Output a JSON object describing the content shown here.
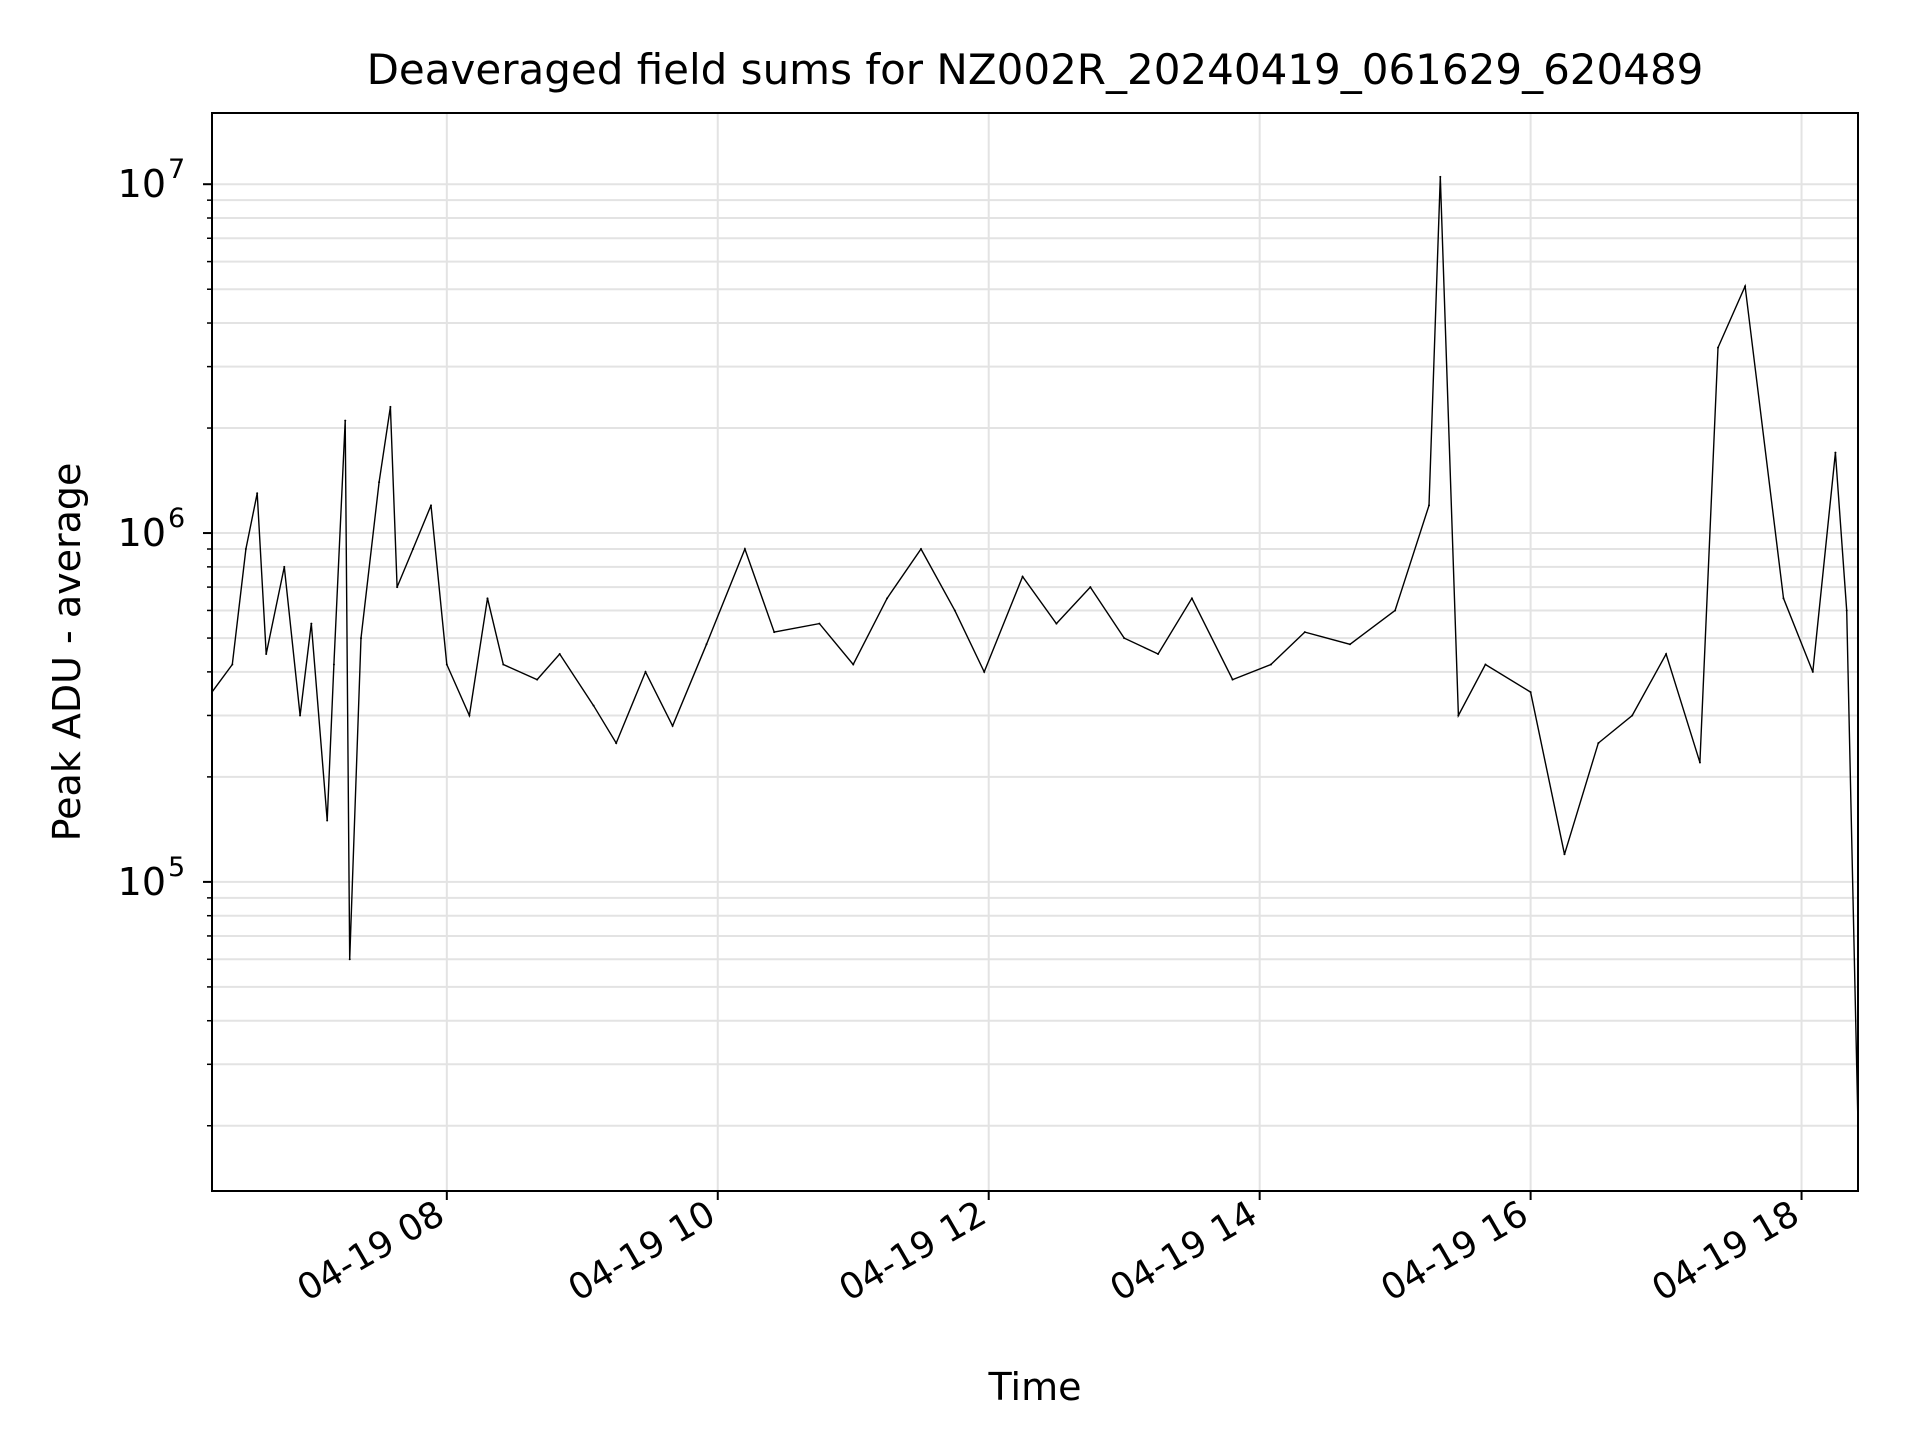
{
  "chart_data": {
    "type": "line",
    "title": "Deaveraged field sums for NZ002R_20240419_061629_620489",
    "xlabel": "Time",
    "ylabel": "Peak ADU - average",
    "y_scale": "log",
    "ylim": [
      13000,
      16000000
    ],
    "xlim": [
      "04-19 06:16",
      "04-19 18:25"
    ],
    "grid": true,
    "line_color": "#000000",
    "x_ticks": [
      {
        "label": "04-19 08",
        "value": "04-19 08:00"
      },
      {
        "label": "04-19 10",
        "value": "04-19 10:00"
      },
      {
        "label": "04-19 12",
        "value": "04-19 12:00"
      },
      {
        "label": "04-19 14",
        "value": "04-19 14:00"
      },
      {
        "label": "04-19 16",
        "value": "04-19 16:00"
      },
      {
        "label": "04-19 18",
        "value": "04-19 18:00"
      }
    ],
    "y_ticks": [
      {
        "value": 100000,
        "base": "10",
        "exp": "5"
      },
      {
        "value": 1000000,
        "base": "10",
        "exp": "6"
      },
      {
        "value": 10000000,
        "base": "10",
        "exp": "7"
      }
    ],
    "series": [
      {
        "values_note_free": true,
        "x": [
          "04-19 06:16",
          "04-19 06:25",
          "04-19 06:31",
          "04-19 06:36",
          "04-19 06:40",
          "04-19 06:48",
          "04-19 06:55",
          "04-19 07:00",
          "04-19 07:07",
          "04-19 07:10",
          "04-19 07:15",
          "04-19 07:17",
          "04-19 07:22",
          "04-19 07:30",
          "04-19 07:35",
          "04-19 07:38",
          "04-19 07:45",
          "04-19 07:53",
          "04-19 08:00",
          "04-19 08:10",
          "04-19 08:18",
          "04-19 08:25",
          "04-19 08:40",
          "04-19 08:50",
          "04-19 09:05",
          "04-19 09:15",
          "04-19 09:28",
          "04-19 09:40",
          "04-19 09:55",
          "04-19 10:12",
          "04-19 10:25",
          "04-19 10:45",
          "04-19 11:00",
          "04-19 11:15",
          "04-19 11:30",
          "04-19 11:45",
          "04-19 11:58",
          "04-19 12:15",
          "04-19 12:30",
          "04-19 12:45",
          "04-19 13:00",
          "04-19 13:15",
          "04-19 13:30",
          "04-19 13:48",
          "04-19 14:05",
          "04-19 14:20",
          "04-19 14:40",
          "04-19 15:00",
          "04-19 15:15",
          "04-19 15:20",
          "04-19 15:28",
          "04-19 15:40",
          "04-19 16:00",
          "04-19 16:15",
          "04-19 16:30",
          "04-19 16:45",
          "04-19 17:00",
          "04-19 17:15",
          "04-19 17:23",
          "04-19 17:35",
          "04-19 17:52",
          "04-19 18:05",
          "04-19 18:15",
          "04-19 18:20",
          "04-19 18:25"
        ],
        "values": [
          350000,
          420000,
          900000,
          1300000,
          450000,
          800000,
          300000,
          550000,
          150000,
          420000,
          2100000,
          60000,
          500000,
          1400000,
          2300000,
          700000,
          900000,
          1200000,
          420000,
          300000,
          650000,
          420000,
          380000,
          450000,
          320000,
          250000,
          400000,
          280000,
          480000,
          900000,
          520000,
          550000,
          420000,
          650000,
          900000,
          600000,
          400000,
          750000,
          550000,
          700000,
          500000,
          450000,
          650000,
          380000,
          420000,
          520000,
          480000,
          600000,
          1200000,
          10500000,
          300000,
          420000,
          350000,
          120000,
          250000,
          300000,
          450000,
          220000,
          3400000,
          5100000,
          650000,
          400000,
          1700000,
          600000,
          20000
        ]
      }
    ]
  }
}
